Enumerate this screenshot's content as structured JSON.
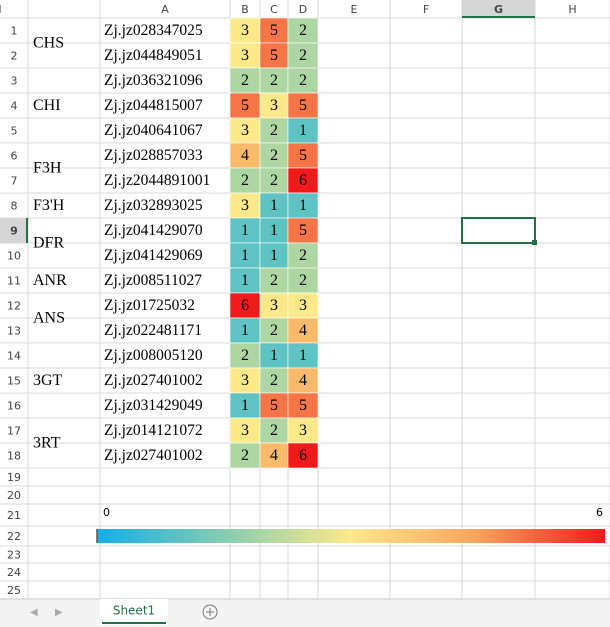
{
  "sheet": {
    "column_headers": [
      "A",
      "B",
      "C",
      "D",
      "E",
      "F",
      "G",
      "H",
      "I"
    ],
    "row_headers": [
      1,
      2,
      3,
      4,
      5,
      6,
      7,
      8,
      9,
      10,
      11,
      12,
      13,
      14,
      15,
      16,
      17,
      18,
      19,
      20,
      21,
      22,
      23,
      24,
      25
    ],
    "selected_cell": {
      "column": "G",
      "row": 9
    },
    "groups": [
      {
        "label": "CHS",
        "genes": [
          {
            "name": "Zj.jz028347025",
            "values": [
              3,
              5,
              2
            ]
          },
          {
            "name": "Zj.jz044849051",
            "values": [
              3,
              5,
              2
            ]
          }
        ]
      },
      {
        "label": "CHI",
        "genes": [
          {
            "name": "Zj.jz036321096",
            "values": [
              2,
              2,
              2
            ]
          },
          {
            "name": "Zj.jz044815007",
            "values": [
              5,
              3,
              5
            ]
          },
          {
            "name": "Zj.jz040641067",
            "values": [
              3,
              2,
              1
            ]
          }
        ]
      },
      {
        "label": "F3H",
        "genes": [
          {
            "name": "Zj.jz028857033",
            "values": [
              4,
              2,
              5
            ]
          },
          {
            "name": "Zj.jz2044891001",
            "values": [
              2,
              2,
              6
            ]
          }
        ]
      },
      {
        "label": "F3'H",
        "genes": [
          {
            "name": "Zj.jz032893025",
            "values": [
              3,
              1,
              1
            ]
          }
        ]
      },
      {
        "label": "DFR",
        "genes": [
          {
            "name": "Zj.jz041429070",
            "values": [
              1,
              1,
              5
            ]
          },
          {
            "name": "Zj.jz041429069",
            "values": [
              1,
              1,
              2
            ]
          }
        ]
      },
      {
        "label": "ANR",
        "genes": [
          {
            "name": "Zj.jz008511027",
            "values": [
              1,
              2,
              2
            ]
          }
        ]
      },
      {
        "label": "ANS",
        "genes": [
          {
            "name": "Zj.jz01725032",
            "values": [
              6,
              3,
              3
            ]
          },
          {
            "name": "Zj.jz022481171",
            "values": [
              1,
              2,
              4
            ]
          }
        ]
      },
      {
        "label": "3GT",
        "genes": [
          {
            "name": "Zj.jz008005120",
            "values": [
              2,
              1,
              1
            ]
          },
          {
            "name": "Zj.jz027401002",
            "values": [
              3,
              2,
              4
            ]
          },
          {
            "name": "Zj.jz031429049",
            "values": [
              1,
              5,
              5
            ]
          }
        ]
      },
      {
        "label": "3RT",
        "genes": [
          {
            "name": "Zj.jz014121072",
            "values": [
              3,
              2,
              3
            ]
          },
          {
            "name": "Zj.jz027401002",
            "values": [
              2,
              4,
              6
            ]
          }
        ]
      }
    ],
    "colorbar": {
      "min": 0,
      "max": 6,
      "stops": [
        "#12aee8",
        "#86cdb0",
        "#fde98a",
        "#f9a35c",
        "#f01a1a"
      ]
    },
    "tab": "Sheet1"
  }
}
